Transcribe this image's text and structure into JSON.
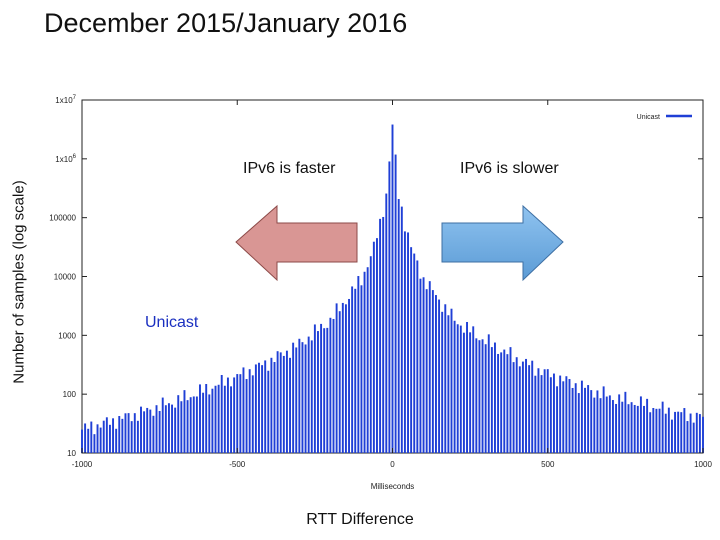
{
  "slide": {
    "title": "December 2015/January 2016",
    "ylabel": "Number of samples (log scale)",
    "xlabel": "RTT Difference"
  },
  "annotations": {
    "faster": "IPv6 is faster",
    "slower": "IPv6 is slower",
    "series_label": "Unicast"
  },
  "colors": {
    "bar": "#1f3fd6",
    "arrow_left": "#d99694",
    "arrow_right": "#5b9bd5"
  },
  "chart_data": {
    "type": "bar",
    "log_scale_y": true,
    "ylim": [
      10,
      10000000
    ],
    "xlim": [
      -1000,
      1000
    ],
    "xlabel": "Milliseconds",
    "x_ticks": [
      "-1000",
      "-500",
      "0",
      "500",
      "1000"
    ],
    "y_ticks": [
      "10",
      "100",
      "1000",
      "10000",
      "100000",
      "1x10^6",
      "1x10^7"
    ],
    "legend": {
      "position": "top-right",
      "entries": [
        "Unicast"
      ]
    },
    "grid": false,
    "bin_width": 10,
    "series": [
      {
        "name": "Unicast",
        "x": [
          -1000,
          -900,
          -800,
          -700,
          -600,
          -500,
          -400,
          -300,
          -200,
          -150,
          -100,
          -60,
          -40,
          -20,
          0,
          20,
          40,
          60,
          100,
          150,
          200,
          300,
          400,
          500,
          600,
          700,
          800,
          900,
          1000
        ],
        "values": [
          25,
          35,
          50,
          75,
          120,
          200,
          350,
          700,
          1800,
          4000,
          9000,
          30000,
          80000,
          250000,
          3500000,
          250000,
          80000,
          30000,
          9000,
          4000,
          1800,
          800,
          400,
          220,
          140,
          90,
          70,
          50,
          40
        ]
      }
    ]
  }
}
